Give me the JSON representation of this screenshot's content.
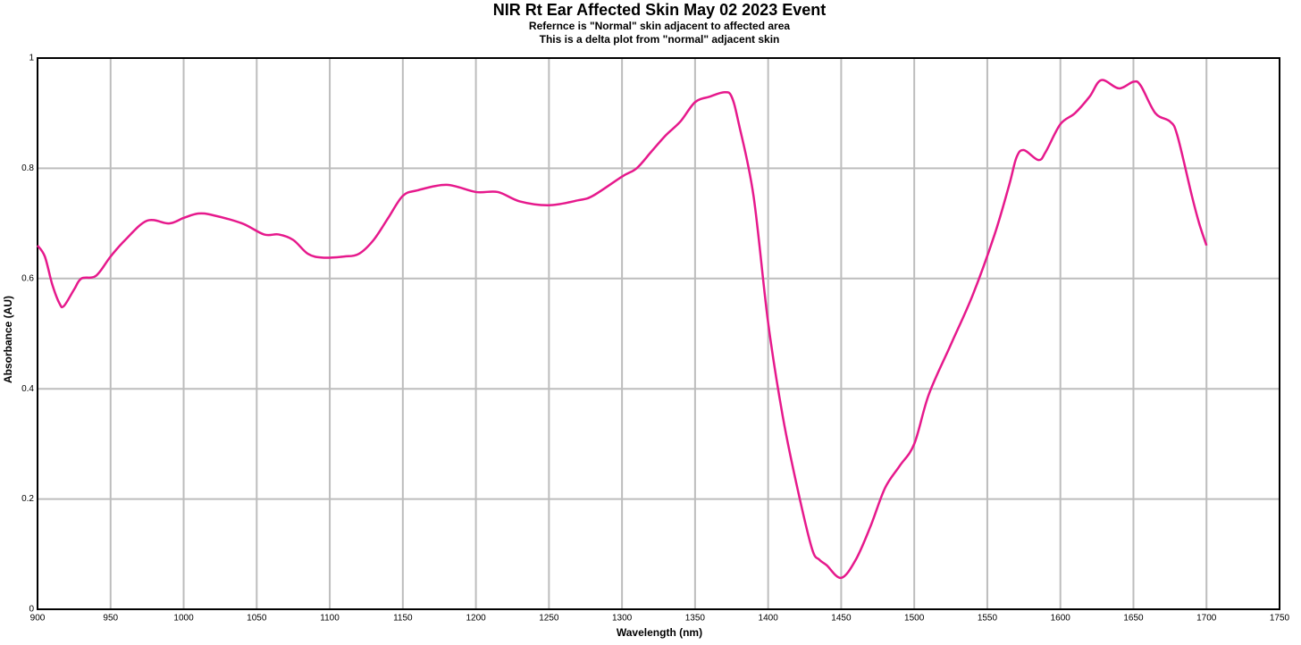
{
  "chart_data": {
    "type": "line",
    "title": "NIR Rt Ear Affected Skin May 02 2023 Event",
    "subtitle": [
      "Refernce is \"Normal\" skin adjacent to affected area",
      "This is a delta plot from \"normal\" adjacent skin"
    ],
    "xlabel": "Wavelength (nm)",
    "ylabel": "Absorbance (AU)",
    "xlim": [
      900,
      1750
    ],
    "xticks": [
      900,
      950,
      1000,
      1050,
      1100,
      1150,
      1200,
      1250,
      1300,
      1350,
      1400,
      1450,
      1500,
      1550,
      1600,
      1650,
      1700,
      1750
    ],
    "ylim": [
      0,
      1
    ],
    "yticks": [
      0,
      0.2,
      0.4,
      0.6,
      0.8,
      1
    ],
    "grid": true,
    "x": [
      900,
      905,
      910,
      915,
      918,
      925,
      930,
      940,
      950,
      960,
      975,
      990,
      1000,
      1010,
      1020,
      1040,
      1055,
      1065,
      1075,
      1085,
      1095,
      1110,
      1120,
      1130,
      1140,
      1150,
      1160,
      1180,
      1200,
      1215,
      1230,
      1250,
      1270,
      1280,
      1300,
      1310,
      1320,
      1330,
      1340,
      1350,
      1360,
      1370,
      1375,
      1380,
      1390,
      1400,
      1410,
      1420,
      1430,
      1435,
      1440,
      1450,
      1460,
      1470,
      1480,
      1490,
      1500,
      1510,
      1525,
      1540,
      1555,
      1565,
      1570,
      1575,
      1585,
      1590,
      1600,
      1610,
      1620,
      1628,
      1640,
      1650,
      1655,
      1665,
      1675,
      1680,
      1690,
      1695,
      1700
    ],
    "series": [
      {
        "color": "#e6198c",
        "values": [
          0.66,
          0.64,
          0.59,
          0.555,
          0.55,
          0.58,
          0.6,
          0.605,
          0.64,
          0.67,
          0.705,
          0.7,
          0.71,
          0.718,
          0.715,
          0.7,
          0.68,
          0.68,
          0.67,
          0.645,
          0.638,
          0.64,
          0.645,
          0.67,
          0.71,
          0.75,
          0.76,
          0.77,
          0.757,
          0.757,
          0.74,
          0.733,
          0.742,
          0.75,
          0.785,
          0.8,
          0.83,
          0.86,
          0.885,
          0.92,
          0.93,
          0.938,
          0.93,
          0.88,
          0.75,
          0.52,
          0.35,
          0.22,
          0.11,
          0.09,
          0.08,
          0.057,
          0.09,
          0.15,
          0.22,
          0.26,
          0.3,
          0.39,
          0.48,
          0.57,
          0.68,
          0.77,
          0.82,
          0.833,
          0.815,
          0.83,
          0.88,
          0.9,
          0.93,
          0.96,
          0.945,
          0.957,
          0.95,
          0.9,
          0.885,
          0.86,
          0.75,
          0.7,
          0.66
        ]
      }
    ]
  }
}
